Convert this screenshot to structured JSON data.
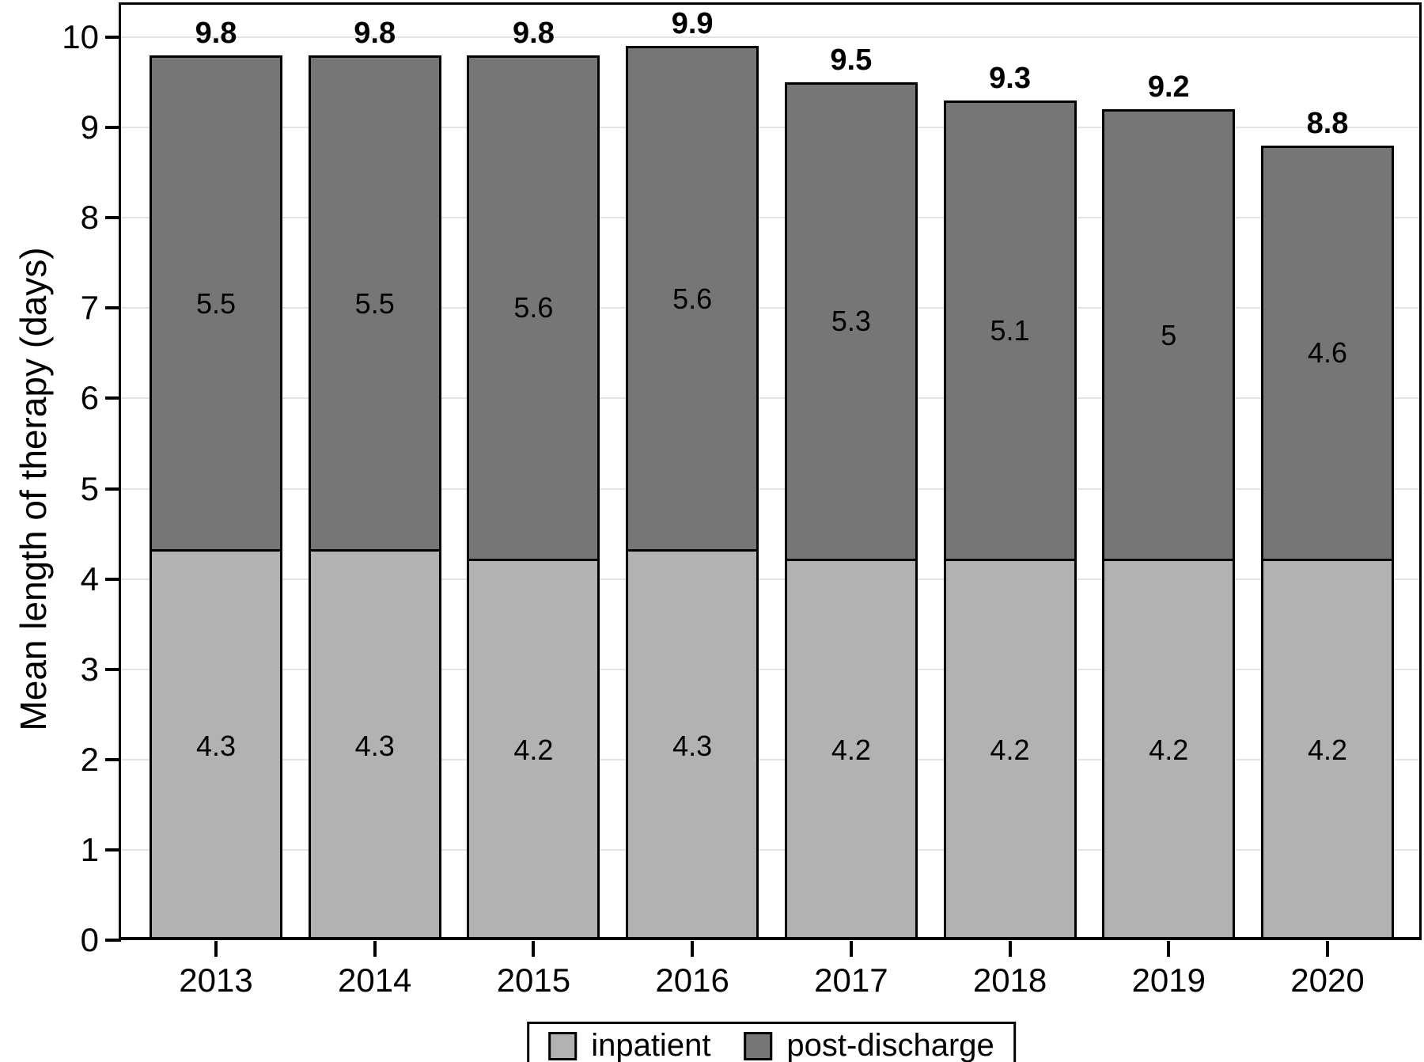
{
  "figure": {
    "background": "#ffffff"
  },
  "chart_data": {
    "type": "bar",
    "stacked": true,
    "title": "",
    "xlabel": "",
    "ylabel": "Mean length of therapy (days)",
    "categories": [
      "2013",
      "2014",
      "2015",
      "2016",
      "2017",
      "2018",
      "2019",
      "2020"
    ],
    "series": [
      {
        "name": "inpatient",
        "color": "#b2b2b2",
        "values": [
          4.3,
          4.3,
          4.2,
          4.3,
          4.2,
          4.2,
          4.2,
          4.2
        ]
      },
      {
        "name": "post-discharge",
        "color": "#767676",
        "values": [
          5.5,
          5.5,
          5.6,
          5.6,
          5.3,
          5.1,
          5,
          4.6
        ]
      }
    ],
    "totals": [
      9.8,
      9.8,
      9.8,
      9.9,
      9.5,
      9.3,
      9.2,
      8.8
    ],
    "ylim": [
      0,
      10
    ],
    "yticks": [
      0,
      1,
      2,
      3,
      4,
      5,
      6,
      7,
      8,
      9,
      10
    ],
    "grid": true,
    "grid_color": "#e3e3e3",
    "outline_color": "#000000",
    "legend_position": "bottom"
  }
}
